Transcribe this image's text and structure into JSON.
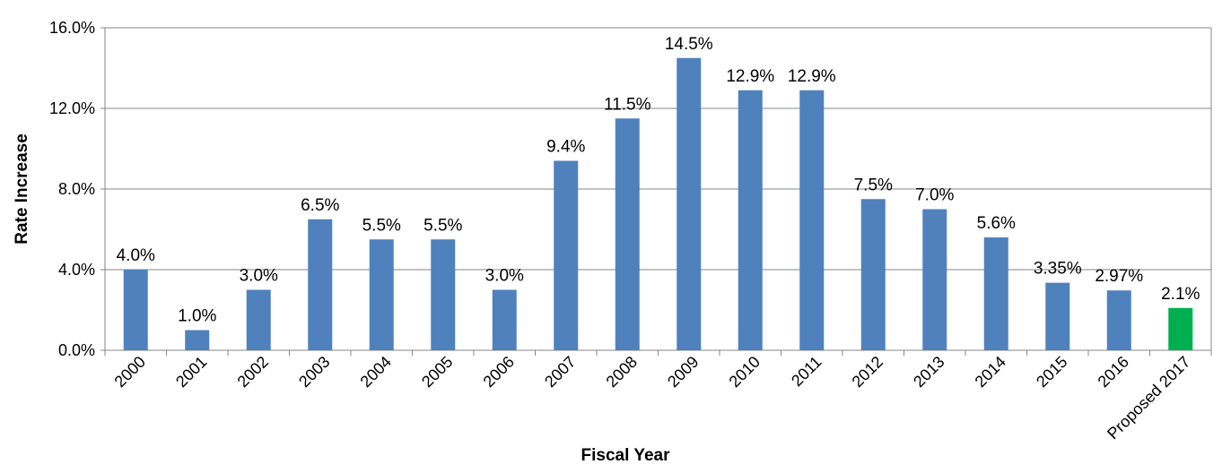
{
  "chart_data": {
    "type": "bar",
    "title": "",
    "xlabel": "Fiscal Year",
    "ylabel": "Rate Increase",
    "ylim": [
      0,
      16
    ],
    "yticks": [
      "0.0%",
      "4.0%",
      "8.0%",
      "12.0%",
      "16.0%"
    ],
    "ytick_values": [
      0,
      4,
      8,
      12,
      16
    ],
    "grid": true,
    "categories": [
      "2000",
      "2001",
      "2002",
      "2003",
      "2004",
      "2005",
      "2006",
      "2007",
      "2008",
      "2009",
      "2010",
      "2011",
      "2012",
      "2013",
      "2014",
      "2015",
      "2016",
      "Proposed 2017"
    ],
    "values": [
      4.0,
      1.0,
      3.0,
      6.5,
      5.5,
      5.5,
      3.0,
      9.4,
      11.5,
      14.5,
      12.9,
      12.9,
      7.5,
      7.0,
      5.6,
      3.35,
      2.97,
      2.1
    ],
    "data_labels": [
      "4.0%",
      "1.0%",
      "3.0%",
      "6.5%",
      "5.5%",
      "5.5%",
      "3.0%",
      "9.4%",
      "11.5%",
      "14.5%",
      "12.9%",
      "12.9%",
      "7.5%",
      "7.0%",
      "5.6%",
      "3.35%",
      "2.97%",
      "2.1%"
    ],
    "colors": {
      "bar": "#4F81BD",
      "highlight_bar": "#00B050",
      "gridline": "#868686"
    },
    "highlight_index": 17
  }
}
